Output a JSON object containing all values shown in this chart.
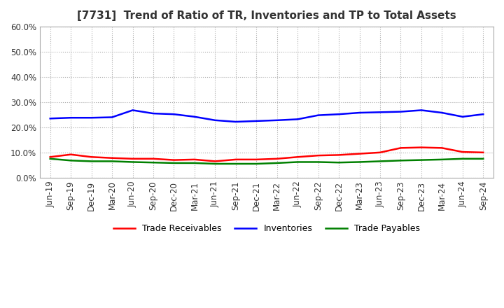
{
  "title": "[7731]  Trend of Ratio of TR, Inventories and TP to Total Assets",
  "x_labels": [
    "Jun-19",
    "Sep-19",
    "Dec-19",
    "Mar-20",
    "Jun-20",
    "Sep-20",
    "Dec-20",
    "Mar-21",
    "Jun-21",
    "Sep-21",
    "Dec-21",
    "Mar-22",
    "Jun-22",
    "Sep-22",
    "Dec-22",
    "Mar-23",
    "Jun-23",
    "Sep-23",
    "Dec-23",
    "Mar-24",
    "Jun-24",
    "Sep-24"
  ],
  "trade_receivables": [
    0.082,
    0.092,
    0.082,
    0.078,
    0.075,
    0.075,
    0.07,
    0.072,
    0.065,
    0.072,
    0.072,
    0.075,
    0.082,
    0.088,
    0.09,
    0.095,
    0.1,
    0.118,
    0.12,
    0.118,
    0.102,
    0.1
  ],
  "inventories": [
    0.235,
    0.238,
    0.238,
    0.24,
    0.268,
    0.255,
    0.252,
    0.242,
    0.228,
    0.222,
    0.225,
    0.228,
    0.232,
    0.248,
    0.252,
    0.258,
    0.26,
    0.262,
    0.268,
    0.258,
    0.242,
    0.252
  ],
  "trade_payables": [
    0.075,
    0.068,
    0.065,
    0.065,
    0.062,
    0.06,
    0.058,
    0.058,
    0.055,
    0.055,
    0.055,
    0.058,
    0.062,
    0.062,
    0.06,
    0.062,
    0.065,
    0.068,
    0.07,
    0.072,
    0.075,
    0.075
  ],
  "tr_color": "#ff0000",
  "inv_color": "#0000ff",
  "tp_color": "#008000",
  "ylim": [
    0.0,
    0.6
  ],
  "yticks": [
    0.0,
    0.1,
    0.2,
    0.3,
    0.4,
    0.5,
    0.6
  ],
  "grid_color": "#aaaaaa",
  "background_color": "#ffffff",
  "title_fontsize": 11,
  "legend_fontsize": 9,
  "tick_fontsize": 8.5
}
